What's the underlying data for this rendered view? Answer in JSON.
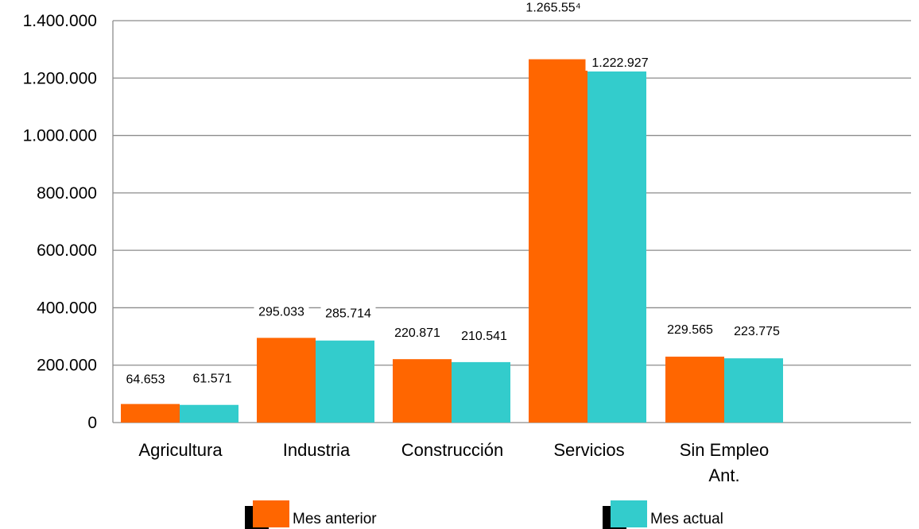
{
  "chart_data": {
    "type": "bar",
    "categories": [
      "Agricultura",
      "Industria",
      "Construcción",
      "Servicios",
      "Sin Empleo Ant."
    ],
    "category_label_lines": [
      [
        "Agricultura"
      ],
      [
        "Industria"
      ],
      [
        "Construcción"
      ],
      [
        "Servicios"
      ],
      [
        "Sin Empleo",
        "Ant."
      ]
    ],
    "series": [
      {
        "name": "Mes anterior",
        "values": [
          64653,
          295033,
          220871,
          1265554,
          229565
        ],
        "labels": [
          "64.653",
          "295.033",
          "220.871",
          "1.265.55⁴",
          "229.565"
        ],
        "color": "#ff6600"
      },
      {
        "name": "Mes actual",
        "values": [
          61571,
          285714,
          210541,
          1222927,
          223775
        ],
        "labels": [
          "61.571",
          "285.714",
          "210.541",
          "1.222.927",
          "223.775"
        ],
        "color": "#33cccc"
      }
    ],
    "ylim": [
      0,
      1400000
    ],
    "yticks": [
      0,
      200000,
      400000,
      600000,
      800000,
      1000000,
      1200000,
      1400000
    ],
    "ytick_labels": [
      "0",
      "200.000",
      "400.000",
      "600.000",
      "800.000",
      "1.000.000",
      "1.200.000",
      "1.400.000"
    ],
    "title": "",
    "xlabel": "",
    "ylabel": "",
    "grid": true,
    "legend_position": "bottom"
  }
}
